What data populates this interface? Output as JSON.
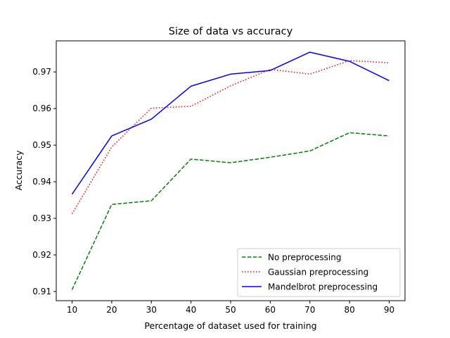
{
  "chart_data": {
    "type": "line",
    "title": "Size of data vs accuracy",
    "xlabel": "Percentage of dataset used for training",
    "ylabel": "Accuracy",
    "x": [
      10,
      20,
      30,
      40,
      50,
      60,
      70,
      80,
      90
    ],
    "xticks": [
      "10",
      "20",
      "30",
      "40",
      "50",
      "60",
      "70",
      "80",
      "90"
    ],
    "yticks": [
      "0.91",
      "0.92",
      "0.93",
      "0.94",
      "0.95",
      "0.96",
      "0.97"
    ],
    "ytick_values": [
      0.91,
      0.92,
      0.93,
      0.94,
      0.95,
      0.96,
      0.97
    ],
    "xlim": [
      6,
      94
    ],
    "ylim": [
      0.9075,
      0.9785
    ],
    "grid": false,
    "legend_position": "lower-right",
    "series": [
      {
        "name": "No preprocessing",
        "color": "#008000",
        "style": "dashed",
        "values": [
          0.9105,
          0.9338,
          0.9348,
          0.9462,
          0.9452,
          0.9467,
          0.9484,
          0.9534,
          0.9525
        ]
      },
      {
        "name": "Gaussian preprocessing",
        "color": "#ff0000",
        "style": "dotted",
        "values": [
          0.9312,
          0.9495,
          0.9601,
          0.9606,
          0.9662,
          0.9707,
          0.9694,
          0.9731,
          0.9725
        ]
      },
      {
        "name": "Mandelbrot preprocessing",
        "color": "#0000ff",
        "style": "solid",
        "values": [
          0.9366,
          0.9525,
          0.9571,
          0.9661,
          0.9694,
          0.9704,
          0.9754,
          0.9729,
          0.9676
        ]
      }
    ]
  }
}
